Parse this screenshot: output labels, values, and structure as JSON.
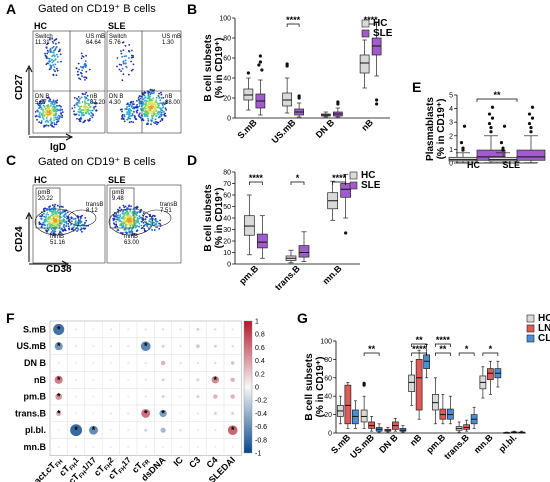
{
  "panels": {
    "A": {
      "letter": "A",
      "title": "Gated on CD19⁺ B cells",
      "groups": [
        "HC",
        "SLE"
      ],
      "xaxis": "IgD",
      "yaxis": "CD27",
      "hc_gates": [
        "Switch",
        "US mB",
        "DN B",
        "nB"
      ],
      "hc_values": [
        "11.31",
        "64.64",
        "5.67",
        "87.20"
      ],
      "sle_gates": [
        "Switch",
        "US mB",
        "DN B",
        "nB"
      ],
      "sle_values": [
        "5.76",
        "1.30",
        "4.30",
        "88.00"
      ]
    },
    "C": {
      "letter": "C",
      "title": "Gated on CD19⁺ B cells",
      "groups": [
        "HC",
        "SLE"
      ],
      "xaxis": "CD38",
      "yaxis": "CD24",
      "hc_gates": [
        "pmB",
        "transB",
        "mmB"
      ],
      "hc_values": [
        "20.22",
        "8.12",
        "51.16"
      ],
      "sle_gates": [
        "pmB",
        "transB",
        "mmB"
      ],
      "sle_values": [
        "9.48",
        "7.51",
        "63.00"
      ]
    },
    "B": {
      "letter": "B"
    },
    "D": {
      "letter": "D"
    },
    "E": {
      "letter": "E"
    },
    "F": {
      "letter": "F"
    },
    "G": {
      "letter": "G"
    }
  },
  "chart_data": [
    {
      "id": "B",
      "type": "boxplot",
      "ylabel": "B cell subsets\n(% in CD19⁺)",
      "ylim": [
        0,
        100
      ],
      "yticks": [
        0,
        20,
        40,
        60,
        80,
        100
      ],
      "categories": [
        "S.mB",
        "US.mB",
        "DN B",
        "nB"
      ],
      "legend": [
        {
          "name": "HC",
          "color": "#d9d9d9"
        },
        {
          "name": "SLE",
          "color": "#a05ccc"
        }
      ],
      "series": [
        {
          "name": "HC",
          "boxes": [
            {
              "min": 8,
              "q1": 18,
              "median": 23,
              "q3": 29,
              "max": 40,
              "outliers": [
                45
              ]
            },
            {
              "min": 5,
              "q1": 12,
              "median": 18,
              "q3": 25,
              "max": 40,
              "outliers": [
                54,
                52
              ]
            },
            {
              "min": 1,
              "q1": 2,
              "median": 3,
              "q3": 4,
              "max": 6,
              "outliers": []
            },
            {
              "min": 30,
              "q1": 45,
              "median": 55,
              "q3": 63,
              "max": 78,
              "outliers": []
            }
          ]
        },
        {
          "name": "SLE",
          "boxes": [
            {
              "min": 3,
              "q1": 10,
              "median": 17,
              "q3": 24,
              "max": 38,
              "outliers": [
                62,
                56,
                53,
                48
              ]
            },
            {
              "min": 1,
              "q1": 3,
              "median": 6,
              "q3": 9,
              "max": 15,
              "outliers": [
                20,
                22
              ]
            },
            {
              "min": 1,
              "q1": 2,
              "median": 4,
              "q3": 6,
              "max": 10,
              "outliers": [
                14,
                16
              ]
            },
            {
              "min": 42,
              "q1": 63,
              "median": 72,
              "q3": 80,
              "max": 96,
              "outliers": [
                18,
                14
              ]
            }
          ]
        }
      ],
      "significance": [
        {
          "category": "US.mB",
          "label": "****"
        },
        {
          "category": "nB",
          "label": "****"
        }
      ]
    },
    {
      "id": "D",
      "type": "boxplot",
      "ylabel": "B cell subsets\n(% in CD19⁺)",
      "ylim": [
        0,
        80
      ],
      "yticks": [
        0,
        10,
        20,
        30,
        40,
        50,
        60,
        70,
        80
      ],
      "categories": [
        "pm.B",
        "trans.B",
        "mn.B"
      ],
      "legend": [
        {
          "name": "HC",
          "color": "#d9d9d9"
        },
        {
          "name": "SLE",
          "color": "#a05ccc"
        }
      ],
      "series": [
        {
          "name": "HC",
          "boxes": [
            {
              "min": 8,
              "q1": 25,
              "median": 33,
              "q3": 42,
              "max": 60,
              "outliers": []
            },
            {
              "min": 1,
              "q1": 3,
              "median": 5,
              "q3": 7,
              "max": 12,
              "outliers": []
            },
            {
              "min": 38,
              "q1": 48,
              "median": 55,
              "q3": 62,
              "max": 72,
              "outliers": []
            }
          ]
        },
        {
          "name": "SLE",
          "boxes": [
            {
              "min": 5,
              "q1": 14,
              "median": 19,
              "q3": 26,
              "max": 42,
              "outliers": []
            },
            {
              "min": 2,
              "q1": 6,
              "median": 10,
              "q3": 16,
              "max": 28,
              "outliers": []
            },
            {
              "min": 40,
              "q1": 58,
              "median": 65,
              "q3": 70,
              "max": 78,
              "outliers": [
                27
              ]
            }
          ]
        }
      ],
      "significance": [
        {
          "category": "pm.B",
          "label": "****"
        },
        {
          "category": "trans.B",
          "label": "*"
        },
        {
          "category": "mn.B",
          "label": "****"
        }
      ]
    },
    {
      "id": "E",
      "type": "boxplot",
      "ylabel": "Plasmablasts\n(% in CD19⁺)",
      "ylim": [
        0,
        5
      ],
      "yticks": [
        0,
        1,
        2,
        3,
        4,
        5
      ],
      "categories": [
        "HC",
        "SLE"
      ],
      "series": [
        {
          "name": "HC",
          "color": "#d9d9d9",
          "boxes": [
            {
              "min": 0.02,
              "q1": 0.15,
              "median": 0.25,
              "q3": 0.42,
              "max": 0.75,
              "outliers": [
                0.95,
                1.1,
                1.5,
                2.7
              ]
            }
          ]
        },
        {
          "name": "SLE",
          "color": "#a05ccc",
          "boxes": [
            {
              "min": 0.02,
              "q1": 0.2,
              "median": 0.45,
              "q3": 0.95,
              "max": 2.0,
              "outliers": [
                2.3,
                2.6,
                2.9,
                3.3,
                3.6,
                4.1
              ]
            }
          ]
        }
      ],
      "significance": [
        {
          "label": "**"
        }
      ]
    },
    {
      "id": "F",
      "type": "heatmap",
      "rows": [
        "S.mB",
        "US.mB",
        "DN B",
        "nB",
        "pm.B",
        "trans.B",
        "pl.bl.",
        "mn.B"
      ],
      "cols": [
        "act.cT_FH",
        "cT_FH1",
        "cT_FH1/17",
        "cT_FH2",
        "cT_FH17",
        "cT_FR",
        "dsDNA",
        "IC",
        "C3",
        "C4",
        "SLEDAI"
      ],
      "col_display": [
        [
          "act.cT",
          "FH"
        ],
        [
          "cT",
          "FH",
          "1"
        ],
        [
          "cT",
          "FH",
          "1/17"
        ],
        [
          "cT",
          "FH",
          "2"
        ],
        [
          "cT",
          "FH",
          "17"
        ],
        [
          "cT",
          "FR",
          ""
        ],
        [
          "dsDNA"
        ],
        [
          "IC"
        ],
        [
          "C3"
        ],
        [
          "C4"
        ],
        [
          "SLEDAI"
        ]
      ],
      "values": [
        [
          -0.75,
          0.1,
          0.05,
          0.1,
          0.05,
          -0.1,
          0.15,
          0.1,
          0.2,
          0.15,
          0.1
        ],
        [
          -0.55,
          0.1,
          0.05,
          0.1,
          0.1,
          -0.65,
          0.2,
          0.1,
          0.25,
          0.2,
          0.15
        ],
        [
          0.05,
          0.05,
          0.05,
          0.05,
          0.05,
          0.1,
          0.3,
          0.1,
          0.1,
          0.15,
          0.25
        ],
        [
          0.55,
          0.05,
          0.05,
          0.05,
          0.05,
          0.1,
          0.2,
          0.1,
          0.2,
          0.5,
          0.3
        ],
        [
          0.45,
          0.05,
          0.05,
          0.05,
          0.05,
          0.1,
          0.2,
          0.05,
          0.2,
          0.3,
          0.3
        ],
        [
          0.35,
          0.05,
          0.05,
          0.1,
          0.1,
          0.6,
          -0.5,
          0.05,
          0.1,
          0.2,
          0.2
        ],
        [
          0.05,
          -0.8,
          -0.6,
          0.05,
          0.05,
          -0.2,
          -0.35,
          -0.15,
          0.05,
          0.1,
          0.65
        ],
        [
          0.05,
          0.05,
          0.05,
          0.05,
          0.05,
          0.05,
          0.05,
          0.05,
          0.05,
          0.05,
          0.05
        ]
      ],
      "stars": [
        [
          0,
          0
        ],
        [
          1,
          0
        ],
        [
          1,
          5
        ],
        [
          3,
          0
        ],
        [
          3,
          9
        ],
        [
          4,
          0
        ],
        [
          5,
          0
        ],
        [
          5,
          5
        ],
        [
          5,
          6
        ],
        [
          6,
          1
        ],
        [
          6,
          2
        ],
        [
          6,
          10
        ]
      ],
      "colorbar": {
        "min": -1,
        "max": 1,
        "ticks": [
          "1",
          "0.8",
          "0.6",
          "0.4",
          "0.2",
          "0",
          "-0.2",
          "-0.4",
          "-0.6",
          "-0.8",
          "-1"
        ]
      }
    },
    {
      "id": "G",
      "type": "boxplot",
      "ylabel": "B cell subsets\n(% in CD19⁺)",
      "ylim": [
        0,
        100
      ],
      "yticks": [
        0,
        20,
        40,
        60,
        80,
        100
      ],
      "categories": [
        "S.mB",
        "US.mB",
        "DN B",
        "nB",
        "pm.B",
        "trans.B",
        "mn.B",
        "pl.bl."
      ],
      "legend": [
        {
          "name": "HC",
          "color": "#d9d9d9"
        },
        {
          "name": "LN",
          "color": "#e05a5a"
        },
        {
          "name": "CL",
          "color": "#4a8ed8"
        }
      ],
      "series": [
        {
          "name": "HC",
          "boxes": [
            {
              "min": 10,
              "q1": 18,
              "median": 24,
              "q3": 30,
              "max": 40,
              "outliers": []
            },
            {
              "min": 5,
              "q1": 12,
              "median": 18,
              "q3": 25,
              "max": 40,
              "outliers": [
                54,
                52
              ]
            },
            {
              "min": 1,
              "q1": 2,
              "median": 3,
              "q3": 4,
              "max": 6,
              "outliers": []
            },
            {
              "min": 30,
              "q1": 45,
              "median": 55,
              "q3": 63,
              "max": 78,
              "outliers": []
            },
            {
              "min": 10,
              "q1": 25,
              "median": 33,
              "q3": 42,
              "max": 60,
              "outliers": []
            },
            {
              "min": 1,
              "q1": 3,
              "median": 5,
              "q3": 7,
              "max": 12,
              "outliers": []
            },
            {
              "min": 38,
              "q1": 48,
              "median": 55,
              "q3": 62,
              "max": 72,
              "outliers": []
            },
            {
              "min": 0,
              "q1": 0.2,
              "median": 0.3,
              "q3": 0.5,
              "max": 1,
              "outliers": []
            }
          ]
        },
        {
          "name": "LN",
          "boxes": [
            {
              "min": 5,
              "q1": 10,
              "median": 30,
              "q3": 52,
              "max": 55,
              "outliers": []
            },
            {
              "min": 2,
              "q1": 5,
              "median": 8,
              "q3": 12,
              "max": 18,
              "outliers": []
            },
            {
              "min": 2,
              "q1": 4,
              "median": 8,
              "q3": 12,
              "max": 16,
              "outliers": []
            },
            {
              "min": 15,
              "q1": 25,
              "median": 60,
              "q3": 80,
              "max": 90,
              "outliers": []
            },
            {
              "min": 10,
              "q1": 15,
              "median": 20,
              "q3": 26,
              "max": 42,
              "outliers": []
            },
            {
              "min": 2,
              "q1": 4,
              "median": 6,
              "q3": 9,
              "max": 14,
              "outliers": []
            },
            {
              "min": 42,
              "q1": 58,
              "median": 65,
              "q3": 70,
              "max": 78,
              "outliers": []
            },
            {
              "min": 0,
              "q1": 0.3,
              "median": 0.6,
              "q3": 1.2,
              "max": 2,
              "outliers": []
            }
          ]
        },
        {
          "name": "CL",
          "boxes": [
            {
              "min": 5,
              "q1": 10,
              "median": 18,
              "q3": 25,
              "max": 35,
              "outliers": []
            },
            {
              "min": 1,
              "q1": 2,
              "median": 4,
              "q3": 6,
              "max": 10,
              "outliers": []
            },
            {
              "min": 1,
              "q1": 2,
              "median": 3,
              "q3": 5,
              "max": 8,
              "outliers": []
            },
            {
              "min": 60,
              "q1": 70,
              "median": 78,
              "q3": 85,
              "max": 96,
              "outliers": []
            },
            {
              "min": 10,
              "q1": 15,
              "median": 20,
              "q3": 26,
              "max": 40,
              "outliers": []
            },
            {
              "min": 5,
              "q1": 10,
              "median": 15,
              "q3": 20,
              "max": 28,
              "outliers": []
            },
            {
              "min": 50,
              "q1": 60,
              "median": 65,
              "q3": 70,
              "max": 78,
              "outliers": []
            },
            {
              "min": 0,
              "q1": 0.3,
              "median": 0.5,
              "q3": 1,
              "max": 2,
              "outliers": []
            }
          ]
        }
      ],
      "significance": [
        {
          "category": "US.mB",
          "label": "**",
          "level": 0
        },
        {
          "category": "nB",
          "label": "**",
          "level": 1
        },
        {
          "category": "nB",
          "label": "****",
          "level": 0
        },
        {
          "category": "pm.B",
          "label": "****",
          "level": 1
        },
        {
          "category": "pm.B",
          "label": "**",
          "level": 0
        },
        {
          "category": "trans.B",
          "label": "*",
          "level": 0
        },
        {
          "category": "mn.B",
          "label": "*",
          "level": 0
        }
      ]
    }
  ]
}
